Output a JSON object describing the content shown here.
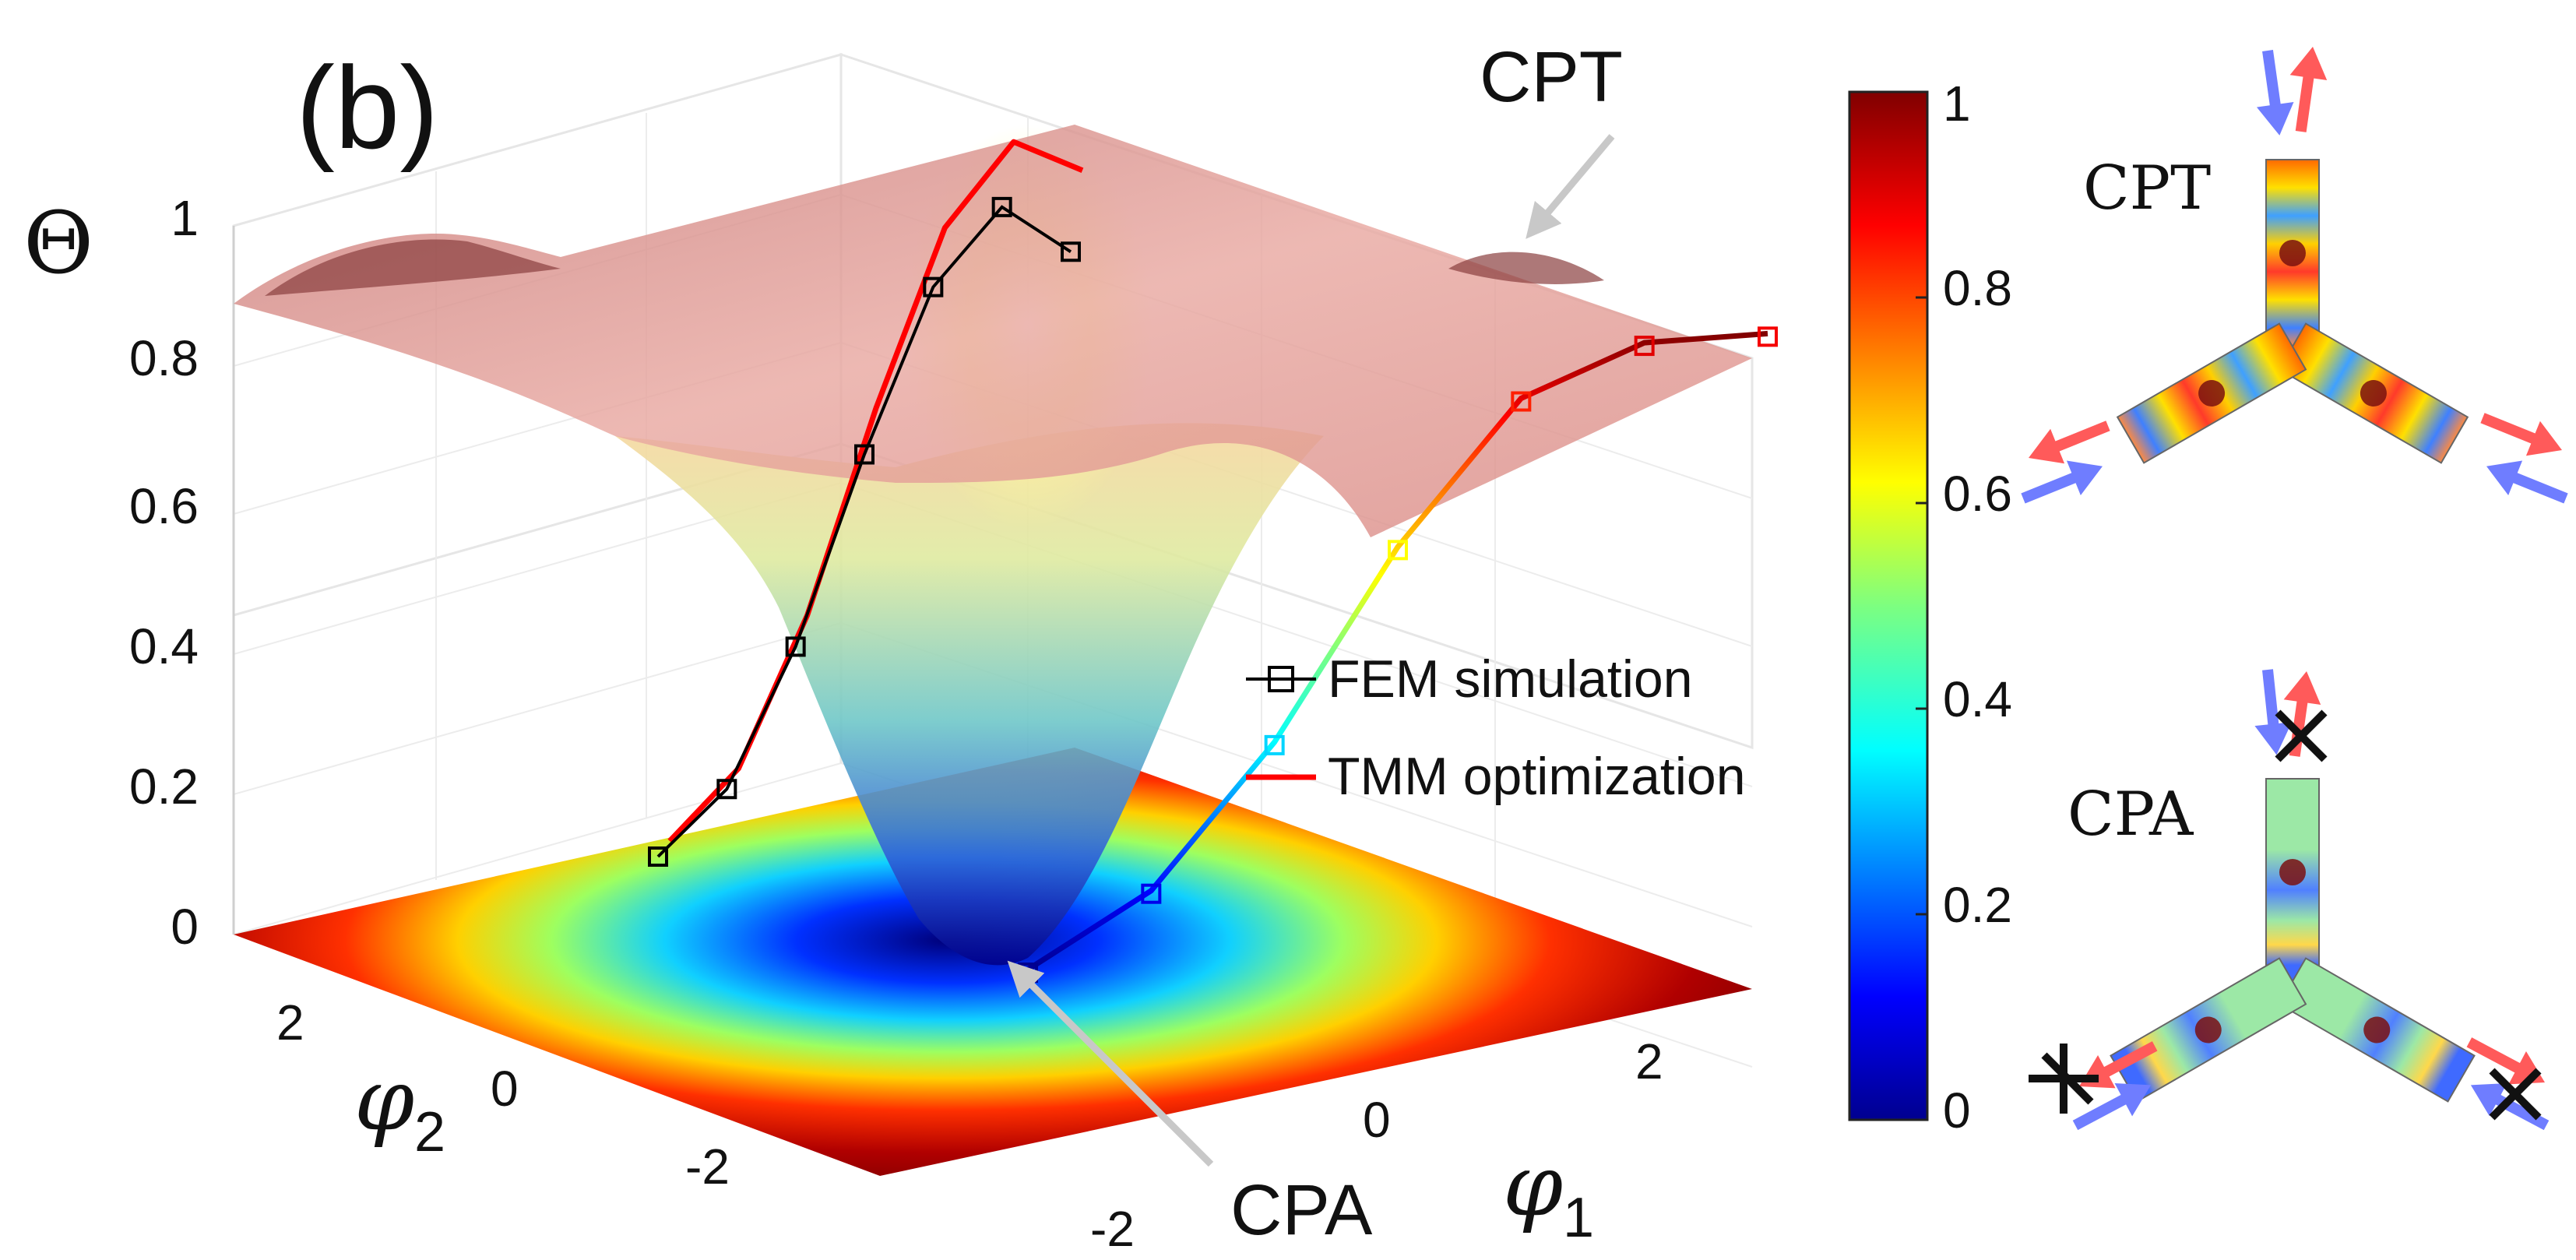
{
  "panel_label": "(b)",
  "annotations": {
    "cpt": "CPT",
    "cpa": "CPA"
  },
  "colors": {
    "fem": "#000000",
    "tmm": "#ff0000",
    "arrow_in": "#6f7dff",
    "arrow_out": "#ff5a5a",
    "pointer": "#c8c8c8"
  },
  "chart_data": {
    "type": "surface",
    "title": "",
    "zlabel": "Θ",
    "xlabel": "φ1",
    "ylabel": "φ2",
    "x_label": {
      "symbol": "φ",
      "sub": "1"
    },
    "y_label": {
      "symbol": "φ",
      "sub": "2"
    },
    "xlim": [
      -3.14,
      3.14
    ],
    "ylim": [
      -3.14,
      3.14
    ],
    "zlim": [
      0,
      1
    ],
    "x_ticks": [
      "-2",
      "0",
      "2"
    ],
    "y_ticks": [
      "-2",
      "0",
      "2"
    ],
    "z_ticks": [
      "0",
      "0.2",
      "0.4",
      "0.6",
      "0.8",
      "1"
    ],
    "surface": {
      "min": 0.0,
      "max": 1.0,
      "cpa_at": [
        0,
        0
      ],
      "cpt_at": [
        3.14,
        3.14
      ],
      "plateau": 0.88
    },
    "colorbar": {
      "min": 0,
      "max": 1,
      "ticks": [
        "0",
        "0.2",
        "0.4",
        "0.6",
        "0.8",
        "1"
      ],
      "colormap": "jet"
    },
    "legend": [
      {
        "label": "FEM simulation",
        "marker": "square",
        "color": "#000000"
      },
      {
        "label": "TMM optimization",
        "marker": "line",
        "color": "#ff0000"
      }
    ],
    "series": [
      {
        "name": "FEM simulation",
        "t": [
          -3.14,
          -2.5,
          -2.0,
          -1.5,
          -1.0,
          -0.5,
          0.0,
          0.5,
          1.0,
          1.5,
          2.0,
          2.5,
          3.14
        ],
        "values": [
          0.92,
          1.0,
          0.88,
          0.62,
          0.32,
          0.1,
          0.0,
          0.1,
          0.32,
          0.62,
          0.84,
          0.9,
          0.88
        ]
      },
      {
        "name": "TMM optimization",
        "t": [
          -3.14,
          -2.5,
          -2.0,
          -1.5,
          -1.0,
          -0.5,
          0.0,
          0.5,
          1.0,
          1.5,
          2.0,
          2.5,
          3.14
        ],
        "values": [
          0.95,
          1.0,
          0.88,
          0.62,
          0.32,
          0.1,
          0.0,
          0.1,
          0.32,
          0.62,
          0.84,
          0.9,
          0.88
        ]
      }
    ]
  }
}
